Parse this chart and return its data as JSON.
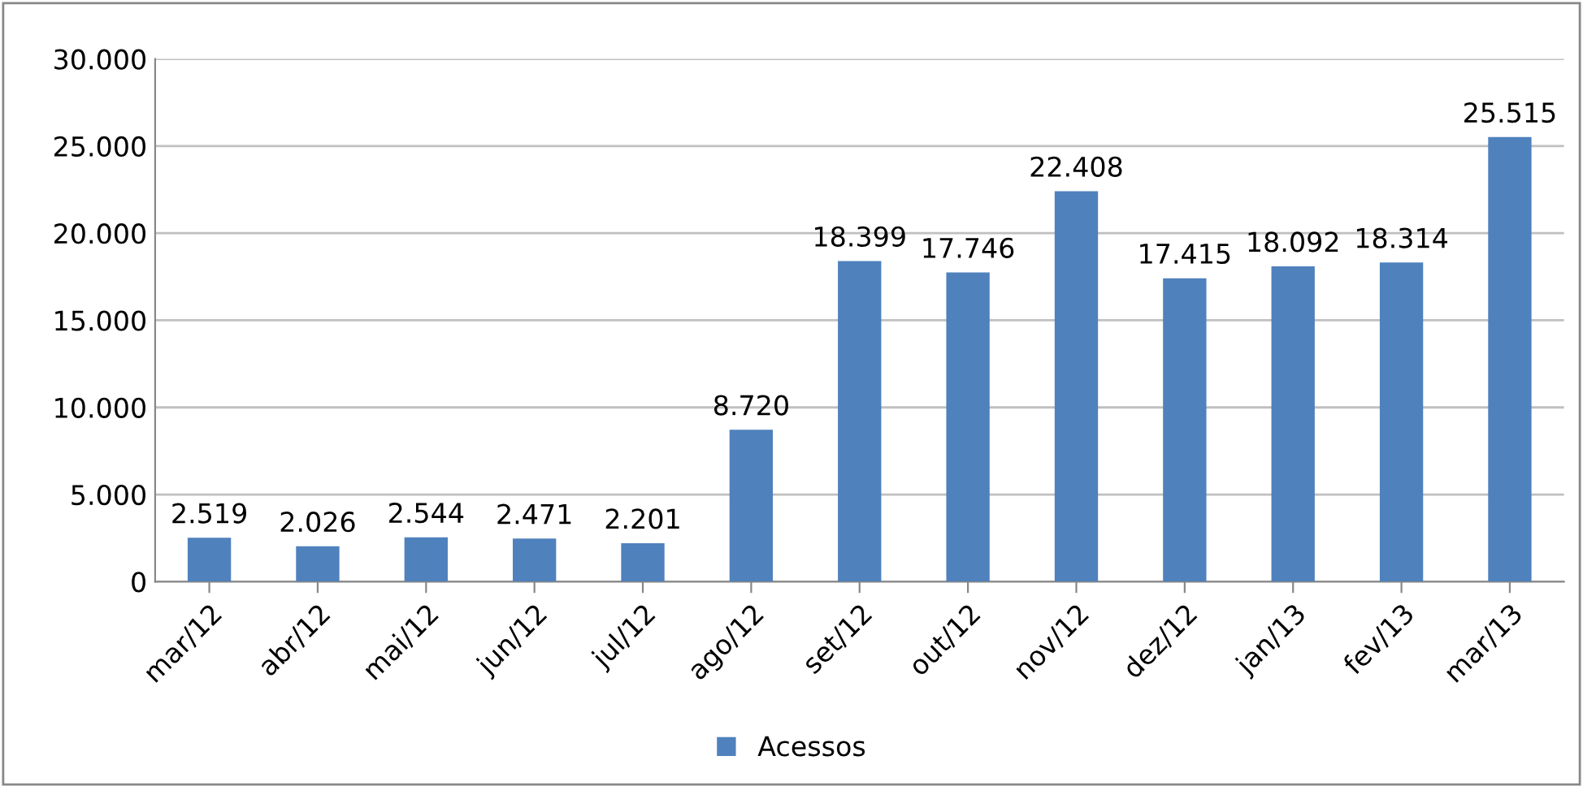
{
  "chart_data": {
    "type": "bar",
    "categories": [
      "mar/12",
      "abr/12",
      "mai/12",
      "jun/12",
      "jul/12",
      "ago/12",
      "set/12",
      "out/12",
      "nov/12",
      "dez/12",
      "jan/13",
      "fev/13",
      "mar/13"
    ],
    "series": [
      {
        "name": "Acessos",
        "color": "#4f81bd",
        "values": [
          2519,
          2026,
          2544,
          2471,
          2201,
          8720,
          18399,
          17746,
          22408,
          17415,
          18092,
          18314,
          25515
        ],
        "value_labels": [
          "2.519",
          "2.026",
          "2.544",
          "2.471",
          "2.201",
          "8.720",
          "18.399",
          "17.746",
          "22.408",
          "17.415",
          "18.092",
          "18.314",
          "25.515"
        ]
      }
    ],
    "ylim": [
      0,
      30000
    ],
    "yticks": [
      {
        "value": 0,
        "label": "0"
      },
      {
        "value": 5000,
        "label": "5.000"
      },
      {
        "value": 10000,
        "label": "10.000"
      },
      {
        "value": 15000,
        "label": "15.000"
      },
      {
        "value": 20000,
        "label": "20.000"
      },
      {
        "value": 25000,
        "label": "25.000"
      },
      {
        "value": 30000,
        "label": "30.000"
      }
    ],
    "grid": "y",
    "legend": "bottom"
  }
}
